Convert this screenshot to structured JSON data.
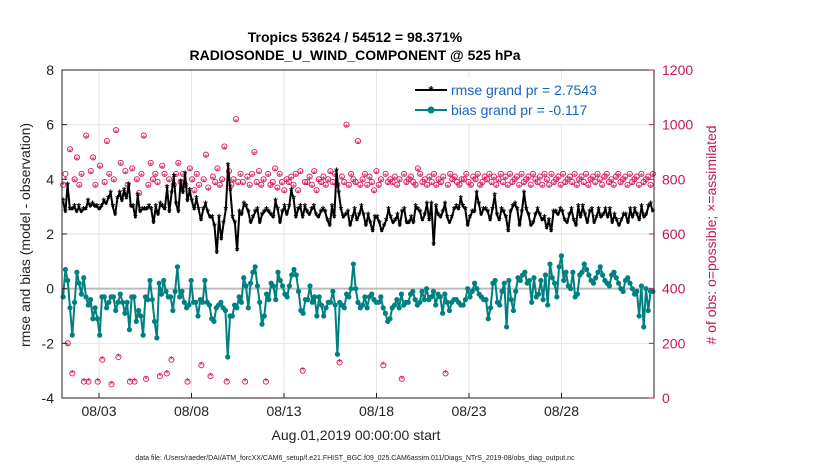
{
  "chart_data": {
    "type": "line",
    "title_line1": "Tropics 53624 / 54512 = 98.371%",
    "title_line2": "RADIOSONDE_U_WIND_COMPONENT @ 525 hPa",
    "xlabel": "Aug.01,2019 00:00:00 start",
    "ylabel_left": "rmse and bias (model - observation)",
    "ylabel_right": "# of obs: o=possible; ×=assimilated",
    "footer": "data file: /Users/raeder/DAI/ATM_forcXX/CAM6_setup/f.e21.FHIST_BGC.f09_025.CAM6assim.011/Diags_NTrS_2019-08/obs_diag_output.nc",
    "x_tick_labels": [
      "08/03",
      "08/08",
      "08/13",
      "08/18",
      "08/23",
      "08/28"
    ],
    "x_tick_days": [
      3,
      8,
      13,
      18,
      23,
      28
    ],
    "xlim_days": [
      1,
      33
    ],
    "ylim_left": [
      -4,
      8
    ],
    "yticks_left": [
      "-4",
      "-2",
      "0",
      "2",
      "4",
      "6",
      "8"
    ],
    "ylim_right": [
      0,
      1200
    ],
    "yticks_right": [
      "0",
      "200",
      "400",
      "600",
      "800",
      "1000",
      "1200"
    ],
    "colors": {
      "rmse": "#000000",
      "bias": "#008080",
      "obs": "#d81b60",
      "right_axis": "#c2185b",
      "legend_text": "#1565c0",
      "zero_line": "#bbbbbb"
    },
    "legend": [
      {
        "name": "rmse grand pr = 2.7543",
        "series": "rmse"
      },
      {
        "name": "bias grand pr = -0.117",
        "series": "bias"
      }
    ],
    "series": [
      {
        "name": "rmse",
        "values": [
          3.2,
          2.8,
          3.8,
          2.9,
          2.9,
          3.0,
          2.8,
          3.0,
          2.8,
          2.9,
          2.9,
          3.2,
          3.0,
          3.1,
          3.0,
          3.0,
          2.9,
          3.0,
          3.2,
          3.1,
          3.3,
          3.5,
          3.0,
          2.7,
          3.3,
          3.5,
          3.2,
          3.6,
          3.3,
          3.8,
          3.0,
          3.0,
          2.6,
          3.4,
          2.8,
          2.9,
          2.9,
          2.9,
          3.0,
          2.9,
          2.4,
          3.0,
          2.7,
          3.1,
          3.0,
          2.9,
          3.7,
          2.8,
          3.5,
          4.1,
          3.1,
          2.8,
          3.9,
          3.5,
          4.2,
          3.2,
          3.6,
          3.2,
          2.9,
          3.3,
          2.9,
          2.5,
          2.9,
          3.1,
          2.8,
          2.6,
          2.6,
          2.3,
          1.3,
          2.6,
          1.8,
          2.4,
          2.9,
          4.5,
          3.6,
          2.6,
          2.4,
          1.4,
          2.8,
          2.7,
          3.1,
          3.0,
          2.8,
          2.4,
          2.6,
          2.8,
          2.9,
          2.4,
          2.7,
          2.8,
          2.9,
          2.8,
          2.7,
          2.6,
          3.2,
          2.9,
          2.4,
          2.8,
          3.0,
          2.7,
          3.0,
          3.6,
          3.3,
          2.6,
          2.9,
          3.0,
          2.6,
          3.0,
          2.8,
          2.7,
          2.9,
          3.0,
          2.7,
          2.6,
          2.8,
          2.9,
          2.8,
          2.5,
          2.3,
          3.0,
          2.6,
          4.3,
          3.5,
          2.9,
          2.6,
          2.7,
          2.8,
          2.3,
          2.6,
          2.9,
          2.5,
          2.7,
          3.0,
          2.7,
          2.3,
          2.7,
          2.4,
          2.1,
          2.6,
          2.6,
          2.4,
          2.1,
          2.3,
          2.5,
          2.9,
          2.6,
          2.4,
          2.5,
          2.7,
          2.3,
          2.8,
          2.9,
          2.4,
          2.4,
          2.6,
          2.4,
          3.0,
          2.9,
          2.8,
          2.5,
          2.7,
          3.1,
          2.5,
          3.1,
          1.6,
          3.0,
          2.7,
          2.6,
          2.8,
          3.1,
          2.6,
          2.4,
          2.6,
          2.9,
          3.0,
          2.9,
          3.3,
          3.0,
          2.9,
          2.3,
          2.6,
          2.8,
          2.8,
          3.5,
          3.1,
          2.7,
          2.9,
          2.9,
          2.8,
          2.5,
          2.9,
          3.4,
          2.7,
          2.5,
          2.9,
          2.8,
          2.6,
          2.1,
          2.8,
          3.0,
          3.1,
          2.9,
          2.3,
          2.8,
          3.5,
          2.9,
          2.7,
          2.3,
          2.4,
          2.7,
          2.9,
          2.7,
          2.5,
          2.6,
          2.2,
          2.5,
          2.1,
          2.8,
          2.8,
          2.7,
          2.9,
          2.8,
          2.5,
          2.4,
          2.7,
          2.9,
          2.5,
          2.3,
          3.0,
          2.6,
          3.0,
          2.7,
          2.4,
          2.8,
          2.9,
          2.4,
          2.6,
          2.9,
          2.6,
          2.7,
          2.9,
          2.6,
          2.9,
          2.4,
          2.7,
          2.5,
          2.3,
          2.5,
          2.7,
          2.7,
          2.4,
          2.9,
          2.6,
          2.9,
          2.7,
          2.5,
          3.0,
          2.6,
          2.7,
          3.0,
          3.1,
          2.8
        ]
      },
      {
        "name": "bias",
        "values": [
          -0.3,
          0.7,
          0.3,
          -0.7,
          -1.7,
          -0.5,
          0.6,
          0.2,
          -0.2,
          0.4,
          -0.3,
          -0.6,
          -0.4,
          -1.1,
          -0.7,
          -1.1,
          -1.7,
          -0.3,
          -0.3,
          -0.7,
          -0.5,
          -0.3,
          -0.3,
          -0.8,
          -0.5,
          -0.2,
          -0.5,
          -0.9,
          -0.5,
          -1.5,
          -0.3,
          -0.3,
          -1.2,
          -0.8,
          -1.0,
          -1.7,
          -0.3,
          -0.4,
          0.3,
          -0.4,
          -1.2,
          -1.8,
          0.2,
          -0.2,
          0.3,
          -0.1,
          -0.3,
          -0.3,
          -0.8,
          -0.1,
          0.8,
          -0.3,
          -0.1,
          -0.5,
          -0.7,
          -0.6,
          0.3,
          -0.5,
          -0.5,
          -1.0,
          -0.4,
          -0.5,
          0.3,
          -0.5,
          -0.6,
          -1.1,
          -1.2,
          -0.7,
          -0.6,
          -0.5,
          -0.7,
          -0.8,
          -2.5,
          -1.0,
          -1.0,
          -0.6,
          -0.7,
          -0.3,
          -0.5,
          0.4,
          0.1,
          -0.7,
          0.2,
          0.6,
          0.8,
          0.1,
          -0.5,
          -1.3,
          -1.0,
          -0.2,
          -0.4,
          0.2,
          0.1,
          -0.4,
          0.6,
          0.3,
          0.1,
          -0.2,
          -0.3,
          0.1,
          0.5,
          0.7,
          0.5,
          -0.1,
          -0.8,
          -0.9,
          -0.4,
          -0.4,
          0.1,
          -0.5,
          -0.3,
          -1.0,
          -0.3,
          -0.6,
          -1.0,
          -0.7,
          -0.5,
          -0.5,
          -0.1,
          -0.6,
          -2.4,
          -0.5,
          -0.6,
          -0.7,
          -0.2,
          -0.3,
          0.0,
          0.9,
          0.0,
          -0.5,
          -0.7,
          -0.6,
          -0.3,
          -0.7,
          -0.3,
          -0.2,
          -0.4,
          -0.5,
          -0.5,
          -0.3,
          -0.7,
          -0.9,
          -1.2,
          -1.1,
          -0.7,
          -0.6,
          -0.4,
          -0.7,
          -0.2,
          -0.6,
          -0.5,
          -0.5,
          -0.2,
          -0.1,
          -0.4,
          -0.6,
          -0.5,
          -0.1,
          -0.4,
          0.0,
          -0.4,
          -0.3,
          -0.1,
          -0.6,
          -0.2,
          -0.3,
          -0.9,
          -0.2,
          -0.5,
          -0.8,
          -0.5,
          -0.4,
          -0.4,
          -0.5,
          -0.6,
          -0.6,
          -0.4,
          0.0,
          -0.3,
          -0.1,
          0.2,
          0.0,
          -0.2,
          -0.3,
          -0.4,
          -0.4,
          -1.1,
          -0.7,
          0.2,
          0.3,
          -0.5,
          -0.6,
          -0.1,
          0.2,
          -1.4,
          0.3,
          -0.4,
          -0.8,
          -0.1,
          0.4,
          0.3,
          0.5,
          0.6,
          0.2,
          0.3,
          -0.5,
          0.4,
          -0.3,
          -0.2,
          0.3,
          -0.4,
          0.5,
          -0.6,
          0.9,
          0.4,
          0.2,
          -0.3,
          0.8,
          1.2,
          0.3,
          0.6,
          0.1,
          0.0,
          0.6,
          -0.3,
          -0.2,
          0.5,
          0.6,
          0.9,
          0.7,
          0.5,
          0.3,
          0.2,
          0.4,
          0.6,
          0.8,
          0.5,
          0.3,
          0.2,
          0.1,
          0.5,
          0.6,
          0.4,
          0.2,
          0.0,
          -0.1,
          0.3,
          0.4,
          0.2,
          0.0,
          -0.2,
          -0.1,
          -1.0,
          0.1,
          -1.4,
          0.0,
          -0.8,
          -0.1,
          -0.1
        ]
      },
      {
        "name": "obs_possible",
        "values": [
          780,
          820,
          200,
          910,
          90,
          800,
          880,
          780,
          820,
          60,
          960,
          60,
          830,
          880,
          780,
          60,
          850,
          140,
          790,
          940,
          820,
          50,
          800,
          980,
          150,
          860,
          750,
          830,
          780,
          60,
          840,
          60,
          800,
          750,
          820,
          960,
          70,
          780,
          860,
          800,
          820,
          790,
          80,
          850,
          820,
          90,
          800,
          140,
          780,
          820,
          860,
          790,
          820,
          780,
          60,
          840,
          800,
          760,
          820,
          780,
          120,
          800,
          890,
          770,
          80,
          810,
          790,
          840,
          780,
          800,
          920,
          60,
          830,
          780,
          800,
          1020,
          790,
          820,
          790,
          60,
          810,
          780,
          820,
          900,
          790,
          830,
          780,
          800,
          60,
          820,
          780,
          790,
          840,
          770,
          820,
          790,
          760,
          800,
          790,
          810,
          780,
          820,
          760,
          830,
          100,
          790,
          790,
          810,
          780,
          830,
          760,
          800,
          790,
          810,
          780,
          800,
          830,
          790,
          820,
          780,
          130,
          810,
          790,
          1000,
          780,
          820,
          800,
          790,
          940,
          780,
          800,
          820,
          780,
          810,
          790,
          760,
          830,
          780,
          800,
          120,
          820,
          790,
          800,
          790,
          810,
          780,
          800,
          70,
          820,
          790,
          800,
          810,
          790,
          780,
          840,
          820,
          790,
          800,
          780,
          810,
          790,
          820,
          780,
          800,
          790,
          810,
          90,
          780,
          820,
          800,
          810,
          790,
          780,
          800,
          800,
          820,
          790,
          780,
          810,
          800,
          820,
          780,
          790,
          810,
          800,
          820,
          790,
          810,
          780,
          800,
          820,
          790,
          810,
          780,
          820,
          790,
          800,
          810,
          780,
          820,
          790,
          800,
          810,
          780,
          820,
          800,
          790,
          810,
          780,
          820,
          800,
          780,
          820,
          790,
          800,
          810,
          780,
          820,
          790,
          800,
          810,
          790,
          820,
          780,
          800,
          810,
          790,
          820,
          780,
          800,
          810,
          790,
          820,
          800,
          780,
          810,
          820,
          790,
          800,
          780,
          810,
          820,
          790,
          800,
          810,
          780,
          820,
          790,
          800,
          810,
          780,
          820,
          790,
          800,
          810,
          780,
          820
        ]
      },
      {
        "name": "obs_assimilated",
        "values": [
          780,
          800,
          190,
          900,
          90,
          790,
          870,
          770,
          810,
          60,
          950,
          60,
          820,
          870,
          770,
          60,
          840,
          140,
          780,
          930,
          810,
          50,
          790,
          970,
          150,
          850,
          740,
          820,
          770,
          60,
          830,
          60,
          790,
          740,
          810,
          950,
          70,
          770,
          850,
          790,
          810,
          780,
          80,
          840,
          810,
          90,
          790,
          140,
          770,
          810,
          850,
          780,
          810,
          770,
          60,
          830,
          790,
          750,
          810,
          770,
          120,
          790,
          880,
          760,
          80,
          800,
          780,
          830,
          770,
          790,
          910,
          60,
          820,
          770,
          790,
          1010,
          780,
          810,
          780,
          60,
          800,
          770,
          810,
          890,
          780,
          820,
          770,
          790,
          60,
          810,
          770,
          780,
          830,
          760,
          810,
          780,
          750,
          790,
          780,
          800,
          770,
          810,
          750,
          820,
          100,
          780,
          780,
          800,
          770,
          820,
          750,
          790,
          780,
          800,
          770,
          790,
          820,
          780,
          810,
          770,
          130,
          800,
          780,
          990,
          770,
          810,
          790,
          780,
          930,
          770,
          790,
          810,
          770,
          800,
          780,
          750,
          820,
          770,
          790,
          120,
          810,
          780,
          790,
          780,
          800,
          770,
          790,
          70,
          810,
          780,
          790,
          800,
          780,
          770,
          830,
          810,
          780,
          790,
          770,
          800,
          780,
          810,
          770,
          790,
          780,
          800,
          90,
          770,
          810,
          790,
          800,
          780,
          770,
          790,
          790,
          810,
          780,
          770,
          800,
          790,
          810,
          770,
          780,
          800,
          790,
          810,
          780,
          800,
          770,
          790,
          810,
          780,
          800,
          770,
          810,
          780,
          790,
          800,
          770,
          810,
          780,
          790,
          800,
          770,
          810,
          790,
          780,
          800,
          770,
          810,
          790,
          770,
          810,
          780,
          790,
          800,
          770,
          810,
          780,
          790,
          800,
          780,
          810,
          770,
          790,
          800,
          780,
          810,
          770,
          790,
          800,
          780,
          810,
          790,
          770,
          800,
          810,
          780,
          790,
          770,
          800,
          810,
          780,
          790,
          800,
          770,
          810,
          780,
          790,
          800,
          770,
          810,
          780,
          790,
          800,
          770,
          810
        ]
      }
    ]
  }
}
